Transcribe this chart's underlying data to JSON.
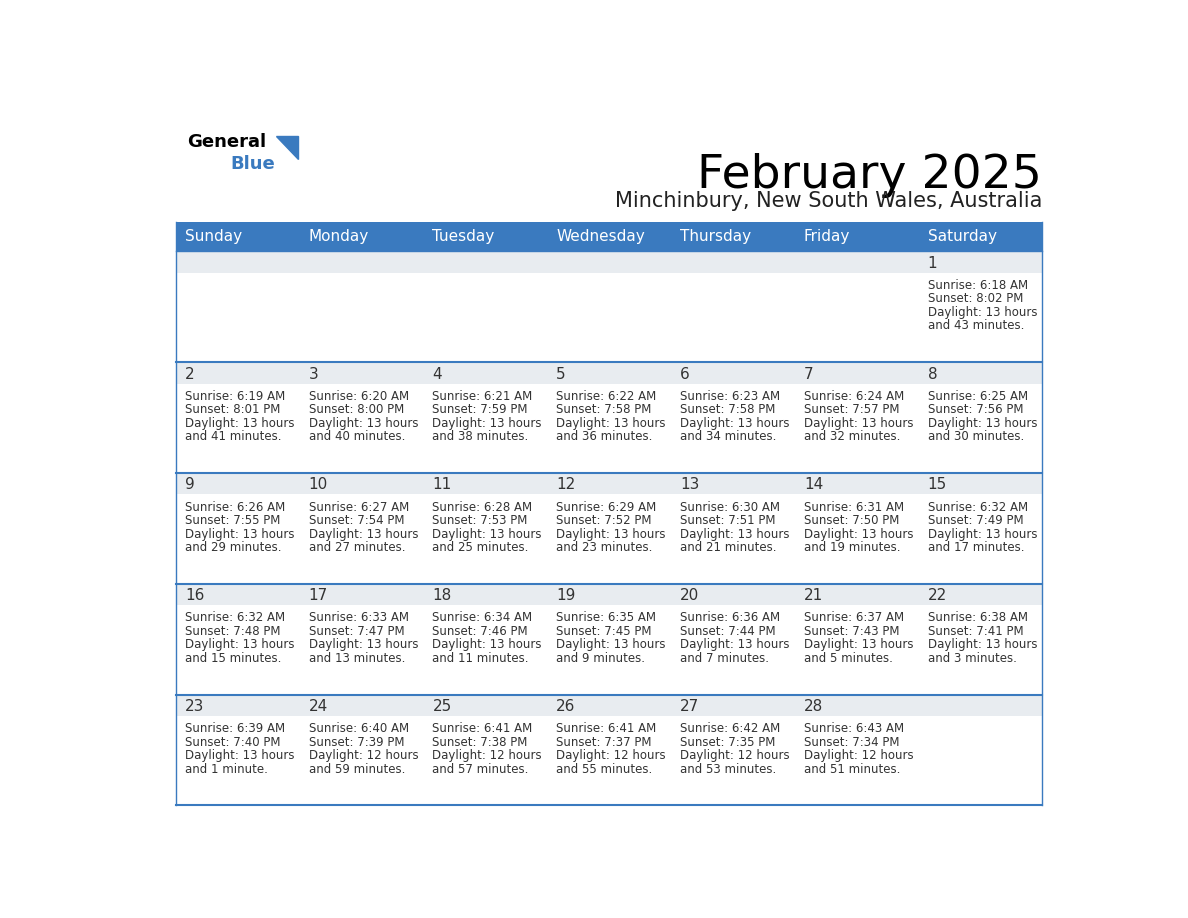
{
  "title": "February 2025",
  "subtitle": "Minchinbury, New South Wales, Australia",
  "days_of_week": [
    "Sunday",
    "Monday",
    "Tuesday",
    "Wednesday",
    "Thursday",
    "Friday",
    "Saturday"
  ],
  "header_bg": "#3a7abf",
  "header_text": "#ffffff",
  "cell_top_bg": "#e8ecf0",
  "cell_body_bg": "#ffffff",
  "divider_color": "#3a7abf",
  "text_color": "#333333",
  "calendar_data": [
    [
      null,
      null,
      null,
      null,
      null,
      null,
      {
        "day": "1",
        "sunrise": "6:18 AM",
        "sunset": "8:02 PM",
        "daylight_hrs": "13 hours",
        "daylight_min": "and 43 minutes."
      }
    ],
    [
      {
        "day": "2",
        "sunrise": "6:19 AM",
        "sunset": "8:01 PM",
        "daylight_hrs": "13 hours",
        "daylight_min": "and 41 minutes."
      },
      {
        "day": "3",
        "sunrise": "6:20 AM",
        "sunset": "8:00 PM",
        "daylight_hrs": "13 hours",
        "daylight_min": "and 40 minutes."
      },
      {
        "day": "4",
        "sunrise": "6:21 AM",
        "sunset": "7:59 PM",
        "daylight_hrs": "13 hours",
        "daylight_min": "and 38 minutes."
      },
      {
        "day": "5",
        "sunrise": "6:22 AM",
        "sunset": "7:58 PM",
        "daylight_hrs": "13 hours",
        "daylight_min": "and 36 minutes."
      },
      {
        "day": "6",
        "sunrise": "6:23 AM",
        "sunset": "7:58 PM",
        "daylight_hrs": "13 hours",
        "daylight_min": "and 34 minutes."
      },
      {
        "day": "7",
        "sunrise": "6:24 AM",
        "sunset": "7:57 PM",
        "daylight_hrs": "13 hours",
        "daylight_min": "and 32 minutes."
      },
      {
        "day": "8",
        "sunrise": "6:25 AM",
        "sunset": "7:56 PM",
        "daylight_hrs": "13 hours",
        "daylight_min": "and 30 minutes."
      }
    ],
    [
      {
        "day": "9",
        "sunrise": "6:26 AM",
        "sunset": "7:55 PM",
        "daylight_hrs": "13 hours",
        "daylight_min": "and 29 minutes."
      },
      {
        "day": "10",
        "sunrise": "6:27 AM",
        "sunset": "7:54 PM",
        "daylight_hrs": "13 hours",
        "daylight_min": "and 27 minutes."
      },
      {
        "day": "11",
        "sunrise": "6:28 AM",
        "sunset": "7:53 PM",
        "daylight_hrs": "13 hours",
        "daylight_min": "and 25 minutes."
      },
      {
        "day": "12",
        "sunrise": "6:29 AM",
        "sunset": "7:52 PM",
        "daylight_hrs": "13 hours",
        "daylight_min": "and 23 minutes."
      },
      {
        "day": "13",
        "sunrise": "6:30 AM",
        "sunset": "7:51 PM",
        "daylight_hrs": "13 hours",
        "daylight_min": "and 21 minutes."
      },
      {
        "day": "14",
        "sunrise": "6:31 AM",
        "sunset": "7:50 PM",
        "daylight_hrs": "13 hours",
        "daylight_min": "and 19 minutes."
      },
      {
        "day": "15",
        "sunrise": "6:32 AM",
        "sunset": "7:49 PM",
        "daylight_hrs": "13 hours",
        "daylight_min": "and 17 minutes."
      }
    ],
    [
      {
        "day": "16",
        "sunrise": "6:32 AM",
        "sunset": "7:48 PM",
        "daylight_hrs": "13 hours",
        "daylight_min": "and 15 minutes."
      },
      {
        "day": "17",
        "sunrise": "6:33 AM",
        "sunset": "7:47 PM",
        "daylight_hrs": "13 hours",
        "daylight_min": "and 13 minutes."
      },
      {
        "day": "18",
        "sunrise": "6:34 AM",
        "sunset": "7:46 PM",
        "daylight_hrs": "13 hours",
        "daylight_min": "and 11 minutes."
      },
      {
        "day": "19",
        "sunrise": "6:35 AM",
        "sunset": "7:45 PM",
        "daylight_hrs": "13 hours",
        "daylight_min": "and 9 minutes."
      },
      {
        "day": "20",
        "sunrise": "6:36 AM",
        "sunset": "7:44 PM",
        "daylight_hrs": "13 hours",
        "daylight_min": "and 7 minutes."
      },
      {
        "day": "21",
        "sunrise": "6:37 AM",
        "sunset": "7:43 PM",
        "daylight_hrs": "13 hours",
        "daylight_min": "and 5 minutes."
      },
      {
        "day": "22",
        "sunrise": "6:38 AM",
        "sunset": "7:41 PM",
        "daylight_hrs": "13 hours",
        "daylight_min": "and 3 minutes."
      }
    ],
    [
      {
        "day": "23",
        "sunrise": "6:39 AM",
        "sunset": "7:40 PM",
        "daylight_hrs": "13 hours",
        "daylight_min": "and 1 minute."
      },
      {
        "day": "24",
        "sunrise": "6:40 AM",
        "sunset": "7:39 PM",
        "daylight_hrs": "12 hours",
        "daylight_min": "and 59 minutes."
      },
      {
        "day": "25",
        "sunrise": "6:41 AM",
        "sunset": "7:38 PM",
        "daylight_hrs": "12 hours",
        "daylight_min": "and 57 minutes."
      },
      {
        "day": "26",
        "sunrise": "6:41 AM",
        "sunset": "7:37 PM",
        "daylight_hrs": "12 hours",
        "daylight_min": "and 55 minutes."
      },
      {
        "day": "27",
        "sunrise": "6:42 AM",
        "sunset": "7:35 PM",
        "daylight_hrs": "12 hours",
        "daylight_min": "and 53 minutes."
      },
      {
        "day": "28",
        "sunrise": "6:43 AM",
        "sunset": "7:34 PM",
        "daylight_hrs": "12 hours",
        "daylight_min": "and 51 minutes."
      },
      null
    ]
  ]
}
